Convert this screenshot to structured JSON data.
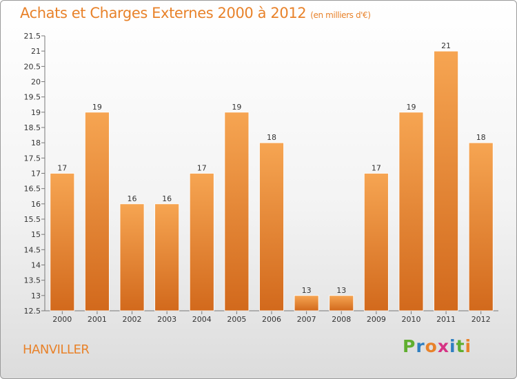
{
  "header": {
    "title": "Achats et Charges Externes 2000 à 2012",
    "subtitle": "(en milliers d'€)"
  },
  "footer": {
    "city": "HANVILLER",
    "logo_letters": [
      "P",
      "r",
      "o",
      "x",
      "i",
      "t",
      "i"
    ],
    "logo_colors": [
      "#5fae2f",
      "#2f7fc1",
      "#e8822a",
      "#d63384",
      "#2f7fc1",
      "#5fae2f",
      "#e8822a"
    ]
  },
  "colors": {
    "bar_top": "#f6a552",
    "bar_bottom": "#d2691c",
    "title": "#e8822a"
  },
  "chart_data": {
    "type": "bar",
    "categories": [
      "2000",
      "2001",
      "2002",
      "2003",
      "2004",
      "2005",
      "2006",
      "2007",
      "2008",
      "2009",
      "2010",
      "2011",
      "2012"
    ],
    "values": [
      17,
      19,
      16,
      16,
      17,
      19,
      18,
      13,
      13,
      17,
      19,
      21,
      18
    ],
    "title": "Achats et Charges Externes 2000 à 2012",
    "xlabel": "",
    "ylabel": "",
    "ylim": [
      12.5,
      21.5
    ],
    "yticks": [
      "12.5",
      "13",
      "13.5",
      "14",
      "14.5",
      "15",
      "15.5",
      "16",
      "16.5",
      "17",
      "17.5",
      "18",
      "18.5",
      "19",
      "19.5",
      "20",
      "20.5",
      "21",
      "21.5"
    ],
    "grid": false
  }
}
